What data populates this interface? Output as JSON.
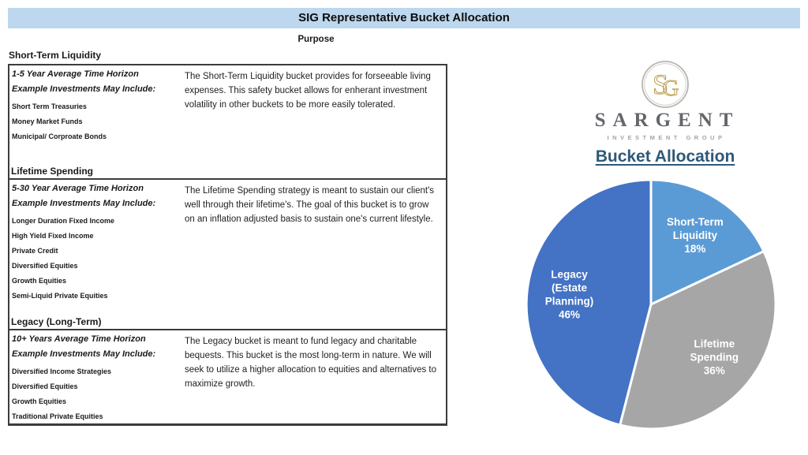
{
  "page": {
    "title": "SIG Representative Bucket Allocation"
  },
  "table": {
    "purpose_header": "Purpose",
    "sections": [
      {
        "title": "Short-Term Liquidity",
        "time_horizon": "1-5 Year Average Time Horizon",
        "include_label": "Example Investments May Include:",
        "items": [
          "Short Term Treasuries",
          "Money Market Funds",
          "Municipal/ Corproate Bonds"
        ],
        "description": "The Short-Term Liquidity bucket provides for forseeable living expenses. This safety bucket allows for enherant investment volatility in other buckets to be more easily tolerated."
      },
      {
        "title": "Lifetime Spending",
        "time_horizon": "5-30 Year Average Time Horizon",
        "include_label": "Example Investments May Include:",
        "items": [
          "Longer Duration Fixed Income",
          "High Yield Fixed Income",
          "Private Credit",
          "Diversified Equities",
          "Growth Equities",
          "Semi-Liquid Private Equities"
        ],
        "description": "The Lifetime Spending strategy is meant to sustain our client's well through their lifetime's. The goal of this bucket is to grow on an inflation adjusted basis to sustain one's current lifestyle."
      },
      {
        "title": "Legacy (Long-Term)",
        "time_horizon": "10+ Years Average Time Horizon",
        "include_label": "Example Investments May Include:",
        "items": [
          "Diversified Income Strategies",
          "Diversified Equities",
          "Growth Equities",
          "Traditional Private Equities"
        ],
        "description": "The Legacy bucket is meant to fund legacy and charitable bequests. This bucket is the most long-term in nature. We will seek to utilize a higher allocation to equities and alternatives to maximize growth."
      }
    ]
  },
  "logo": {
    "monogram": "SG",
    "name": "SARGENT",
    "subtitle": "INVESTMENT GROUP",
    "monogram_gold": "#BEA45C",
    "circle_gray": "#B8B4AD"
  },
  "chart_title": "Bucket Allocation",
  "chart_data": {
    "type": "pie",
    "title": "Bucket Allocation",
    "start_angle_deg": 0,
    "direction": "clockwise",
    "legend_position": "none",
    "label_color": "#FFFFFF",
    "slices": [
      {
        "label": "Short-Term Liquidity",
        "value": 18,
        "pct_label": "18%",
        "color": "#5B9BD5",
        "label_lines": [
          "Short-Term",
          "Liquidity",
          "18%"
        ]
      },
      {
        "label": "Lifetime Spending",
        "value": 36,
        "pct_label": "36%",
        "color": "#A6A6A6",
        "label_lines": [
          "Lifetime",
          "Spending",
          "36%"
        ]
      },
      {
        "label": "Legacy (Estate Planning)",
        "value": 46,
        "pct_label": "46%",
        "color": "#4472C4",
        "label_lines": [
          "Legacy",
          "(Estate",
          "Planning)",
          "46%"
        ]
      }
    ]
  },
  "colors": {
    "title_bar_bg": "#BDD7EE",
    "heading_blue": "#2E5977",
    "brand_gray": "#63666A",
    "table_border": "#3C3C3C"
  }
}
